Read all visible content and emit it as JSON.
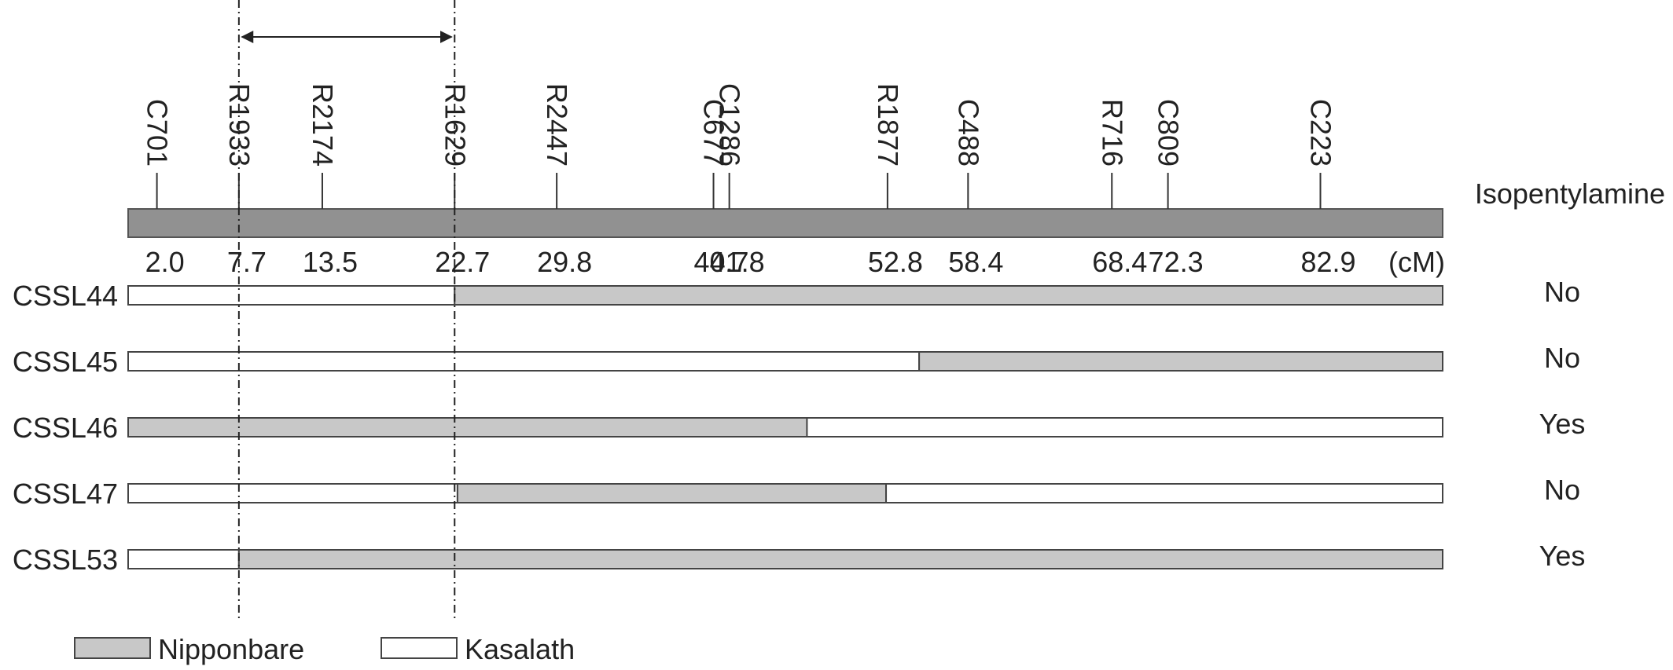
{
  "trait": "Isopentylamine",
  "unit": "(cM)",
  "chromosome_color": "#919191",
  "colors": {
    "nipponbare": "#c8c8c8",
    "kasalath": "#ffffff",
    "outline": "#444444"
  },
  "markers": [
    {
      "name": "C701",
      "pos": "2.0"
    },
    {
      "name": "R1933",
      "pos": "7.7"
    },
    {
      "name": "R2174",
      "pos": "13.5"
    },
    {
      "name": "R1629",
      "pos": "22.7"
    },
    {
      "name": "R2447",
      "pos": "29.8"
    },
    {
      "name": "C677",
      "pos": "40.7"
    },
    {
      "name": "C1286",
      "pos": "41.8"
    },
    {
      "name": "R1877",
      "pos": "52.8"
    },
    {
      "name": "C488",
      "pos": "58.4"
    },
    {
      "name": "R716",
      "pos": "68.4"
    },
    {
      "name": "C809",
      "pos": "72.3"
    },
    {
      "name": "C223",
      "pos": "82.9"
    }
  ],
  "lines": [
    {
      "name": "CSSL44",
      "phenotype": "No",
      "segments": [
        {
          "from": 0.0,
          "to": 22.7,
          "genotype": "kasalath"
        },
        {
          "from": 22.7,
          "to": 91.4,
          "genotype": "nipponbare"
        }
      ]
    },
    {
      "name": "CSSL45",
      "phenotype": "No",
      "segments": [
        {
          "from": 0.0,
          "to": 55.0,
          "genotype": "kasalath"
        },
        {
          "from": 55.0,
          "to": 91.4,
          "genotype": "nipponbare"
        }
      ]
    },
    {
      "name": "CSSL46",
      "phenotype": "Yes",
      "segments": [
        {
          "from": 0.0,
          "to": 47.2,
          "genotype": "nipponbare"
        },
        {
          "from": 47.2,
          "to": 91.4,
          "genotype": "kasalath"
        }
      ]
    },
    {
      "name": "CSSL47",
      "phenotype": "No",
      "segments": [
        {
          "from": 0.0,
          "to": 22.9,
          "genotype": "kasalath"
        },
        {
          "from": 22.9,
          "to": 52.7,
          "genotype": "nipponbare"
        },
        {
          "from": 52.7,
          "to": 91.4,
          "genotype": "kasalath"
        }
      ]
    },
    {
      "name": "CSSL53",
      "phenotype": "Yes",
      "segments": [
        {
          "from": 0.0,
          "to": 7.7,
          "genotype": "kasalath"
        },
        {
          "from": 7.7,
          "to": 91.4,
          "genotype": "nipponbare"
        }
      ]
    }
  ],
  "candidate_region": {
    "from": 7.7,
    "to": 22.7
  },
  "legend": [
    {
      "label": "Nipponbare",
      "genotype": "nipponbare"
    },
    {
      "label": "Kasalath",
      "genotype": "kasalath"
    }
  ]
}
